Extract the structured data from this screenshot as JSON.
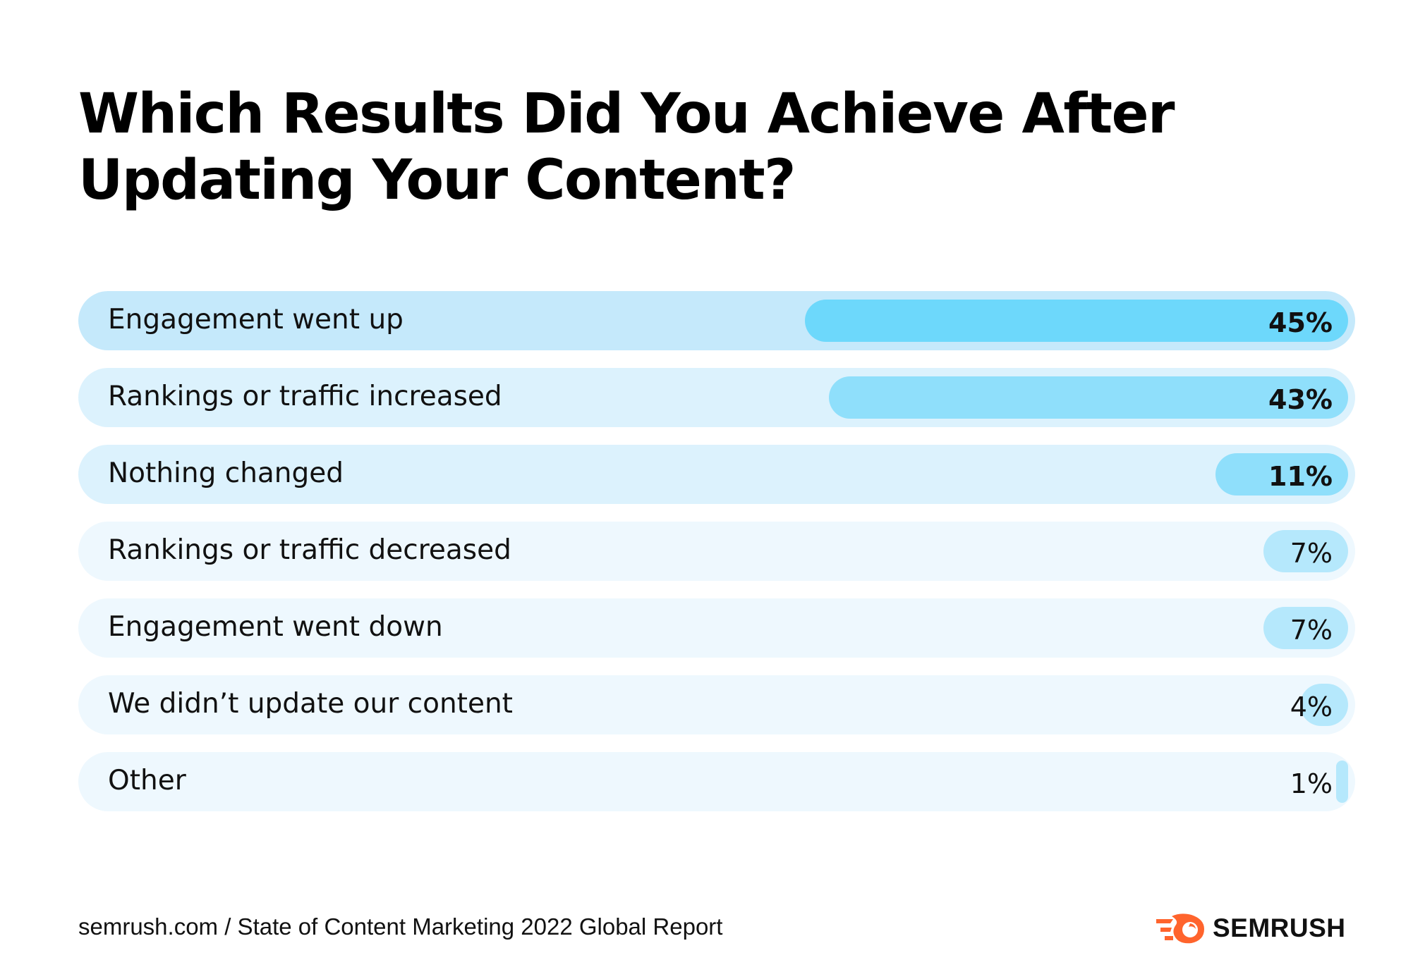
{
  "title": "Which Results Did You Achieve After Updating Your Content?",
  "chart_data": {
    "type": "bar",
    "orientation": "horizontal",
    "title": "Which Results Did You Achieve After Updating Your Content?",
    "value_suffix": "%",
    "categories": [
      "Engagement went up",
      "Rankings or traffic increased",
      "Nothing changed",
      "Rankings or traffic decreased",
      "Engagement went down",
      "We didn’t update our content",
      "Other"
    ],
    "values": [
      45,
      43,
      11,
      7,
      7,
      4,
      1
    ],
    "value_labels": [
      "45%",
      "43%",
      "11%",
      "7%",
      "7%",
      "4%",
      "1%"
    ],
    "track_colors": [
      "#c5e9fb",
      "#dcf2fd",
      "#dcf2fd",
      "#eef8fe",
      "#eef8fe",
      "#eef8fe",
      "#eef8fe"
    ],
    "bar_colors": [
      "#6dd8fb",
      "#8fdffb",
      "#8fdffb",
      "#b5e8fc",
      "#b5e8fc",
      "#b5e8fc",
      "#b5e8fc"
    ],
    "bold_labels": [
      true,
      true,
      true,
      false,
      false,
      false,
      false
    ],
    "xlim": [
      0,
      50
    ]
  },
  "footer": {
    "source": "semrush.com / State of Content Marketing 2022 Global Report",
    "logo_text": "SEMRUSH",
    "logo_icon": "semrush-fire-icon",
    "logo_color": "#ff642d"
  }
}
